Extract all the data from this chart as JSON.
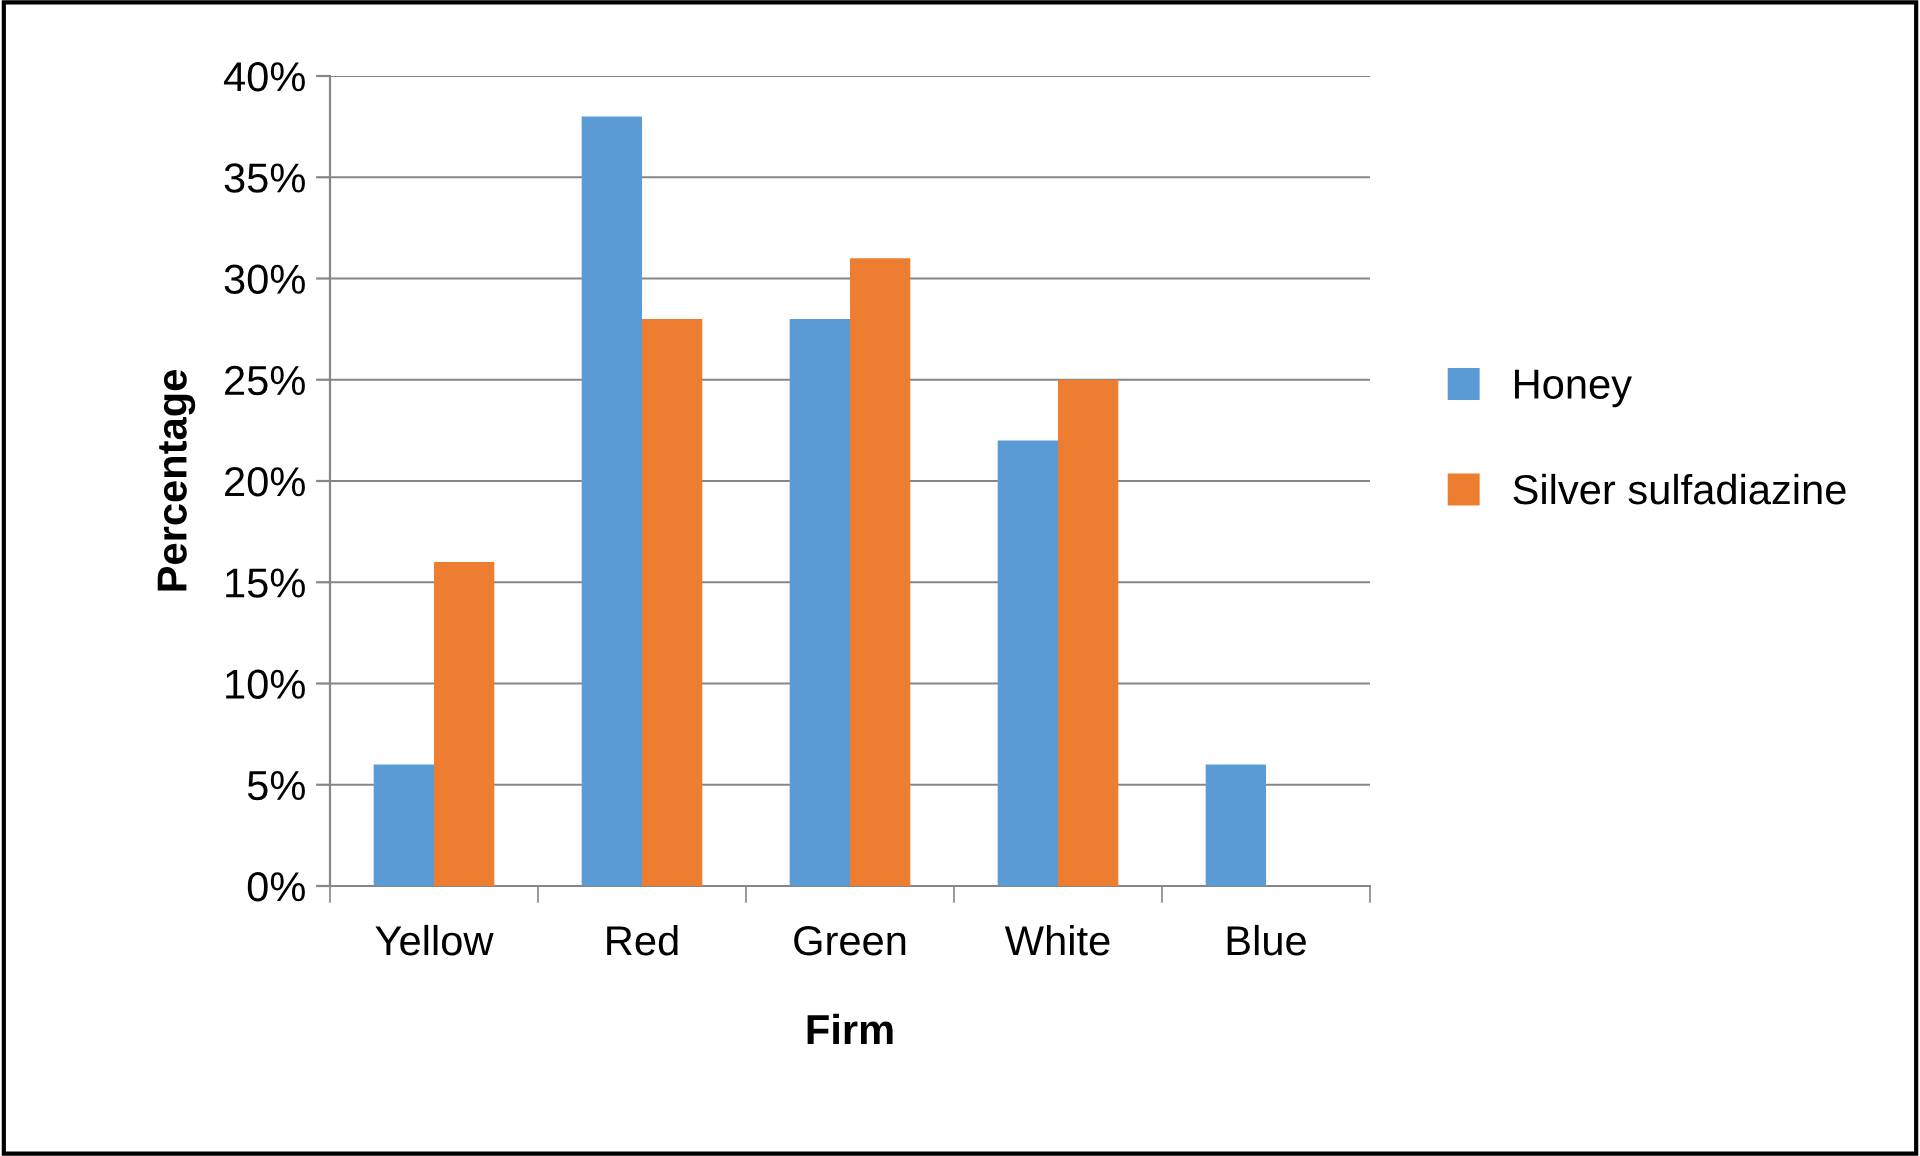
{
  "chart_data": {
    "type": "bar",
    "xlabel": "Firm",
    "ylabel": "Percentage",
    "categories": [
      "Yellow",
      "Red",
      "Green",
      "White",
      "Blue"
    ],
    "series": [
      {
        "name": "Honey",
        "color": "#5b9bd5",
        "values": [
          6,
          38,
          28,
          22,
          6
        ]
      },
      {
        "name": "Silver sulfadiazine",
        "color": "#ed7d31",
        "values": [
          16,
          28,
          31,
          25,
          0
        ]
      }
    ],
    "ylim": [
      0,
      40
    ],
    "yticks": [
      {
        "value": 0,
        "label": "0%"
      },
      {
        "value": 5,
        "label": "5%"
      },
      {
        "value": 10,
        "label": "10%"
      },
      {
        "value": 15,
        "label": "15%"
      },
      {
        "value": 20,
        "label": "20%"
      },
      {
        "value": 25,
        "label": "25%"
      },
      {
        "value": 30,
        "label": "30%"
      },
      {
        "value": 35,
        "label": "35%"
      },
      {
        "value": 40,
        "label": "40%"
      }
    ],
    "grid": "y",
    "legend": "right"
  }
}
